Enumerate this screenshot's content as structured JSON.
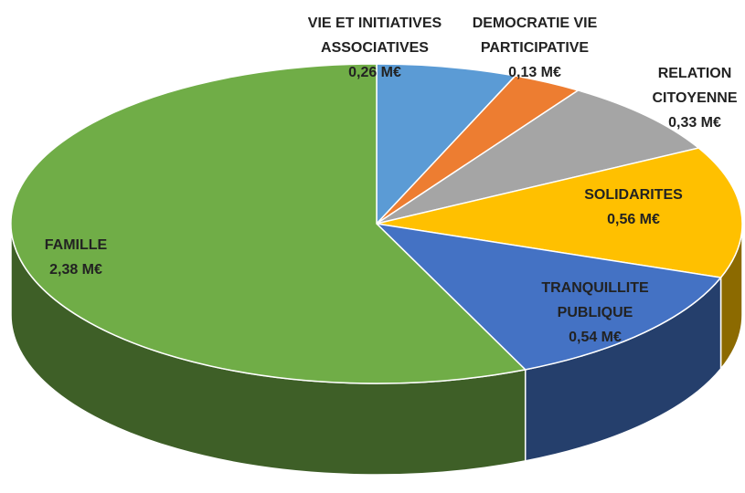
{
  "chart_data": {
    "type": "pie",
    "categories": [
      "VIE ET INITIATIVES ASSOCIATIVES",
      "DEMOCRATIE VIE PARTICIPATIVE",
      "RELATION CITOYENNE",
      "SOLIDARITES",
      "TRANQUILLITE PUBLIQUE",
      "FAMILLE"
    ],
    "values": [
      0.26,
      0.13,
      0.33,
      0.56,
      0.54,
      2.38
    ],
    "value_labels": [
      "0,26 M€",
      "0,13 M€",
      "0,33 M€",
      "0,56 M€",
      "0,54 M€",
      "2,38 M€"
    ],
    "colors": [
      "#5b9bd5",
      "#ed7d31",
      "#a5a5a5",
      "#ffc000",
      "#4472c4",
      "#70ad47"
    ]
  }
}
